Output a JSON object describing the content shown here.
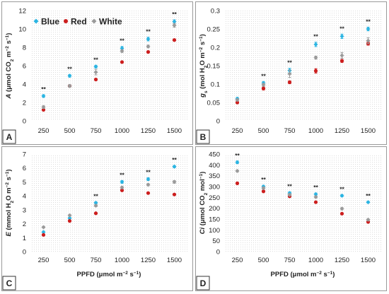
{
  "colors": {
    "blue": "#2ab4e2",
    "red": "#cc1e1e",
    "white": "#9a9a9a",
    "frame": "#9a9a9a",
    "plot_bg_dot": "#dcdcdc"
  },
  "chart_data": [
    {
      "type": "scatter",
      "panel": "A",
      "ylabel_html": "A (μmol CO2 m−2 s−1)",
      "ylabel_parts": [
        "A",
        " (μmol CO",
        "2",
        " m",
        "−2",
        " s",
        "−1",
        ")"
      ],
      "xlabel": "",
      "categories": [
        "250",
        "500",
        "750",
        "1000",
        "1250",
        "1500"
      ],
      "ylim": [
        0,
        12
      ],
      "yticks": [
        "0",
        "2",
        "4",
        "6",
        "8",
        "10",
        "12"
      ],
      "legend": {
        "position": "top-left",
        "entries": [
          "Blue",
          "Red",
          "White"
        ]
      },
      "series": [
        {
          "name": "Blue",
          "values": [
            2.7,
            4.9,
            5.9,
            7.9,
            8.9,
            10.8
          ],
          "err": [
            0.15,
            0.15,
            0.15,
            0.2,
            0.2,
            0.2
          ]
        },
        {
          "name": "Red",
          "values": [
            1.2,
            3.8,
            4.5,
            6.4,
            7.5,
            8.8
          ],
          "err": [
            0.1,
            0.1,
            0.1,
            0.1,
            0.1,
            0.1
          ]
        },
        {
          "name": "White",
          "values": [
            1.5,
            3.8,
            5.3,
            7.6,
            8.1,
            10.4
          ],
          "err": [
            0.15,
            0.15,
            0.3,
            0.15,
            0.15,
            0.2
          ]
        }
      ],
      "significance": [
        "**",
        "**",
        "**",
        "**",
        "**",
        "**"
      ]
    },
    {
      "type": "scatter",
      "panel": "B",
      "ylabel_parts": [
        "g",
        "s",
        " (mol H",
        "2",
        "O m",
        "−2",
        " s",
        "−1",
        ")"
      ],
      "xlabel": "",
      "categories": [
        "250",
        "500",
        "750",
        "1000",
        "1250",
        "1500"
      ],
      "ylim": [
        0,
        0.3
      ],
      "yticks": [
        "0",
        "0.05",
        "0.1",
        "0.15",
        "0.2",
        "0.25",
        "0.3"
      ],
      "series": [
        {
          "name": "Blue",
          "values": [
            0.06,
            0.103,
            0.137,
            0.208,
            0.23,
            0.25
          ],
          "err": [
            0.004,
            0.004,
            0.006,
            0.006,
            0.006,
            0.005
          ]
        },
        {
          "name": "Red",
          "values": [
            0.05,
            0.088,
            0.105,
            0.136,
            0.163,
            0.21
          ],
          "err": [
            0.003,
            0.004,
            0.004,
            0.006,
            0.004,
            0.004
          ]
        },
        {
          "name": "White",
          "values": [
            0.057,
            0.098,
            0.128,
            0.172,
            0.178,
            0.218
          ],
          "err": [
            0.003,
            0.004,
            0.01,
            0.004,
            0.008,
            0.008
          ]
        }
      ],
      "significance": [
        "",
        "**",
        "**",
        "**",
        "**",
        "**"
      ]
    },
    {
      "type": "scatter",
      "panel": "C",
      "ylabel_parts": [
        "E",
        " (mmol H",
        "2",
        "O m",
        "−2",
        " s",
        "−1",
        ")"
      ],
      "xlabel_parts": [
        "PPFD (μmol m",
        "−2",
        "  s",
        "−1",
        ")"
      ],
      "categories": [
        "250",
        "500",
        "750",
        "1000",
        "1250",
        "1500"
      ],
      "ylim": [
        0,
        7
      ],
      "yticks": [
        "0",
        "1",
        "2",
        "3",
        "4",
        "5",
        "6",
        "7"
      ],
      "series": [
        {
          "name": "Blue",
          "values": [
            1.4,
            2.4,
            3.5,
            5.0,
            5.2,
            6.1
          ],
          "err": [
            0.06,
            0.06,
            0.08,
            0.1,
            0.1,
            0.08
          ]
        },
        {
          "name": "Red",
          "values": [
            1.2,
            2.2,
            2.75,
            4.4,
            4.2,
            4.1
          ],
          "err": [
            0.05,
            0.05,
            0.05,
            0.06,
            0.05,
            0.05
          ]
        },
        {
          "name": "White",
          "values": [
            1.75,
            2.6,
            3.3,
            4.6,
            4.8,
            5.0
          ],
          "err": [
            0.06,
            0.06,
            0.08,
            0.08,
            0.08,
            0.1
          ]
        }
      ],
      "significance": [
        "",
        "",
        "**",
        "**",
        "**",
        "**"
      ]
    },
    {
      "type": "scatter",
      "panel": "D",
      "ylabel_parts": [
        "Ci",
        " (μmol CO",
        "2",
        " mol",
        "−1",
        ")"
      ],
      "xlabel_parts": [
        "PPFD (μmol m",
        "−2",
        "  s",
        "−1",
        ")"
      ],
      "categories": [
        "250",
        "500",
        "750",
        "1000",
        "1250",
        "1500"
      ],
      "ylim": [
        0,
        450
      ],
      "yticks": [
        "0",
        "50",
        "100",
        "150",
        "200",
        "250",
        "300",
        "350",
        "400",
        "450"
      ],
      "series": [
        {
          "name": "Blue",
          "values": [
            412,
            300,
            270,
            265,
            258,
            228
          ],
          "err": [
            6,
            6,
            6,
            5,
            5,
            4
          ]
        },
        {
          "name": "Red",
          "values": [
            315,
            278,
            255,
            228,
            175,
            137
          ],
          "err": [
            3,
            3,
            3,
            3,
            3,
            3
          ]
        },
        {
          "name": "White",
          "values": [
            372,
            293,
            262,
            252,
            198,
            147
          ],
          "err": [
            4,
            5,
            5,
            5,
            5,
            4
          ]
        }
      ],
      "significance": [
        "**",
        "**",
        "**",
        "**",
        "**",
        "**"
      ]
    }
  ]
}
